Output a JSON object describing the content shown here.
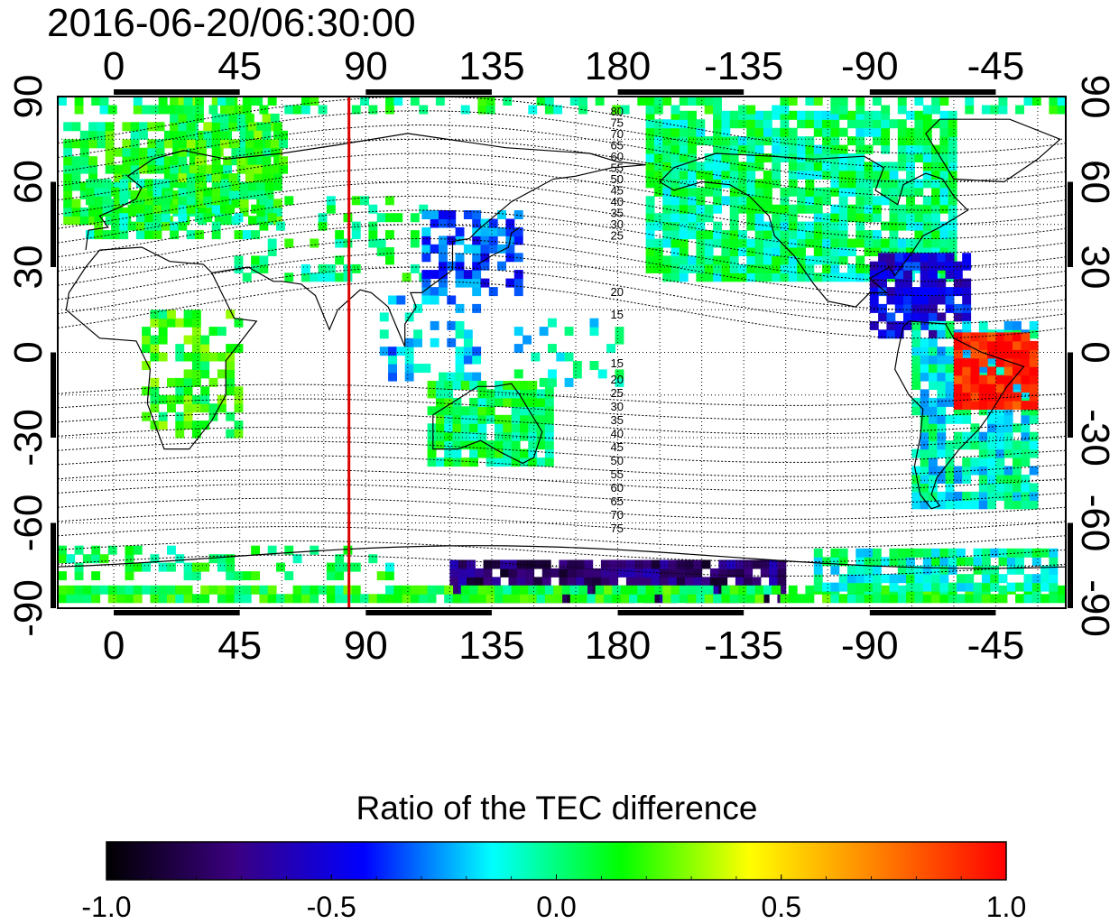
{
  "timestamp": "2016-06-20/06:30:00",
  "axes": {
    "top_ticks": [
      "0",
      "45",
      "90",
      "135",
      "180",
      "-135",
      "-90",
      "-45"
    ],
    "bottom_ticks": [
      "0",
      "45",
      "90",
      "135",
      "180",
      "-135",
      "-90",
      "-45"
    ],
    "left_ticks": [
      "90",
      "60",
      "30",
      "0",
      "-30",
      "-60",
      "-90"
    ],
    "right_ticks": [
      "90",
      "60",
      "30",
      "0",
      "-30",
      "-60",
      "-90"
    ],
    "lon_ticks_deg": [
      0,
      45,
      90,
      135,
      180,
      225,
      270,
      315
    ],
    "lat_ticks_deg": [
      90,
      60,
      30,
      0,
      -30,
      -60,
      -90
    ],
    "lon_range_deg": [
      -20,
      340
    ],
    "lat_range_deg": [
      -90,
      90
    ],
    "grid": true
  },
  "contours": {
    "labels_north": [
      "80",
      "75",
      "70",
      "65",
      "60",
      "55",
      "50",
      "45",
      "40",
      "35",
      "30",
      "25",
      "20",
      "15"
    ],
    "labels_south": [
      "15",
      "20",
      "25",
      "30",
      "35",
      "40",
      "45",
      "50",
      "55",
      "60",
      "65",
      "70",
      "75"
    ]
  },
  "marker_line_lon_deg": 84,
  "colorbar": {
    "title": "Ratio of the TEC difference",
    "tick_labels": [
      "-1.0",
      "-0.5",
      "0.0",
      "0.5",
      "1.0"
    ],
    "range": [
      -1.0,
      1.0
    ],
    "stops": [
      "#000000",
      "#3a0080",
      "#0000ff",
      "#00ffff",
      "#00ff00",
      "#ffff00",
      "#ff8000",
      "#ff0000"
    ]
  },
  "colors": {
    "marker_line": "#dd0000",
    "ocean": "#ffffff",
    "coast": "#000000"
  }
}
